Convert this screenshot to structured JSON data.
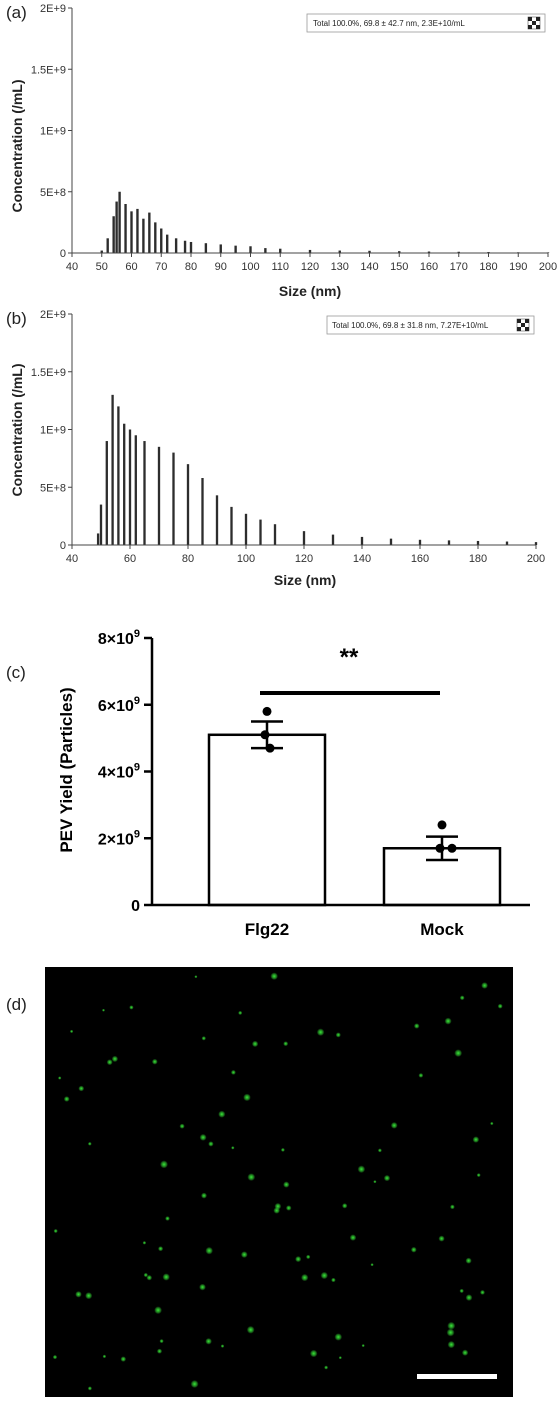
{
  "chart_data": [
    {
      "panel": "(a)",
      "type": "bar",
      "legend_text": "Total  100.0%,  69.8 ± 42.7 nm,  2.3E+10/mL",
      "xlabel": "Size (nm)",
      "ylabel": "Concentration (/mL)",
      "xlim": [
        40,
        200
      ],
      "ylim": [
        0,
        2000000000
      ],
      "xticks": [
        "40",
        "50",
        "60",
        "70",
        "80",
        "90",
        "100",
        "110",
        "120",
        "130",
        "140",
        "150",
        "160",
        "170",
        "180",
        "190",
        "200"
      ],
      "yticks": [
        "0",
        "5E+8",
        "1E+9",
        "1.5E+9",
        "2E+9"
      ],
      "series": [
        {
          "x": [
            47.5,
            50,
            52,
            54,
            55,
            56,
            58,
            60,
            62,
            64,
            66,
            68,
            70,
            72,
            75,
            78,
            80,
            85,
            90,
            95,
            100,
            105,
            110,
            120,
            130,
            140,
            150,
            160,
            170,
            180,
            190,
            200
          ],
          "values": [
            0,
            20000000,
            120000000,
            300000000,
            420000000,
            500000000,
            400000000,
            340000000,
            360000000,
            280000000,
            330000000,
            250000000,
            200000000,
            150000000,
            120000000,
            100000000,
            90000000,
            80000000,
            70000000,
            60000000,
            55000000,
            40000000,
            35000000,
            25000000,
            20000000,
            18000000,
            15000000,
            12000000,
            10000000,
            8000000,
            6000000,
            5000000
          ]
        }
      ]
    },
    {
      "panel": "(b)",
      "type": "bar",
      "legend_text": "Total  100.0%,  69.8 ± 31.8 nm,  7.27E+10/mL",
      "xlabel": "Size (nm)",
      "ylabel": "Concentration (/mL)",
      "xlim": [
        40,
        200
      ],
      "ylim": [
        0,
        2000000000
      ],
      "xticks": [
        "40",
        "60",
        "80",
        "100",
        "120",
        "140",
        "160",
        "180",
        "200"
      ],
      "yticks": [
        "0",
        "5E+8",
        "1E+9",
        "1.5E+9",
        "2E+9"
      ],
      "series": [
        {
          "x": [
            47.5,
            49,
            50,
            52,
            54,
            56,
            58,
            60,
            62,
            65,
            70,
            75,
            80,
            85,
            90,
            95,
            100,
            105,
            110,
            120,
            130,
            140,
            150,
            160,
            170,
            180,
            190,
            200
          ],
          "values": [
            0,
            100000000,
            350000000,
            900000000,
            1300000000,
            1200000000,
            1050000000,
            1000000000,
            950000000,
            900000000,
            850000000,
            800000000,
            700000000,
            580000000,
            430000000,
            330000000,
            270000000,
            220000000,
            180000000,
            120000000,
            90000000,
            70000000,
            55000000,
            45000000,
            40000000,
            35000000,
            30000000,
            25000000
          ]
        }
      ]
    },
    {
      "panel": "(c)",
      "type": "bar",
      "ylabel": "PEV Yield (Particles)",
      "categories": [
        "Flg22",
        "Mock"
      ],
      "values": [
        5100000000,
        1700000000
      ],
      "error": [
        400000000,
        350000000
      ],
      "points": [
        [
          5800000000,
          5100000000,
          4700000000
        ],
        [
          2400000000,
          1700000000,
          1700000000
        ]
      ],
      "ylim": [
        0,
        8000000000
      ],
      "yticks": [
        {
          "base": "0",
          "exp": ""
        },
        {
          "base": "2×10",
          "exp": "9"
        },
        {
          "base": "4×10",
          "exp": "9"
        },
        {
          "base": "6×10",
          "exp": "9"
        },
        {
          "base": "8×10",
          "exp": "9"
        }
      ],
      "significance": "**"
    }
  ],
  "panels": {
    "a_label": "(a)",
    "b_label": "(b)",
    "c_label": "(c)",
    "d_label": "(d)"
  },
  "micrograph": {
    "background": "#000000",
    "dot_color": "#38e838",
    "scale_bar_color": "#ffffff"
  }
}
